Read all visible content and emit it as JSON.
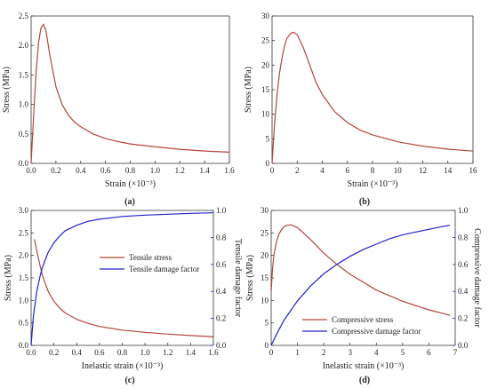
{
  "colors": {
    "stress": "#b5463a",
    "damage": "#2222cc",
    "axis": "#333333",
    "right_axis": "#2222cc"
  },
  "chart_data": [
    {
      "panel": "(a)",
      "type": "line",
      "xlabel": "Strain (×10⁻³)",
      "ylabel": "Stress (MPa)",
      "xlim": [
        0,
        1.6
      ],
      "ylim": [
        0,
        2.5
      ],
      "xticks": [
        "0.0",
        "0.2",
        "0.4",
        "0.6",
        "0.8",
        "1.0",
        "1.2",
        "1.4",
        "1.6"
      ],
      "yticks": [
        "0.0",
        "0.5",
        "1.0",
        "1.5",
        "2.0",
        "2.5"
      ],
      "series": [
        {
          "color": "stress",
          "x": [
            0,
            0.02,
            0.04,
            0.06,
            0.08,
            0.1,
            0.12,
            0.15,
            0.2,
            0.25,
            0.3,
            0.35,
            0.4,
            0.5,
            0.6,
            0.7,
            0.8,
            1.0,
            1.2,
            1.4,
            1.6
          ],
          "y": [
            0,
            0.8,
            1.55,
            2.05,
            2.3,
            2.36,
            2.25,
            1.85,
            1.3,
            1.0,
            0.82,
            0.7,
            0.62,
            0.5,
            0.42,
            0.37,
            0.33,
            0.28,
            0.24,
            0.21,
            0.19
          ]
        }
      ]
    },
    {
      "panel": "(b)",
      "type": "line",
      "xlabel": "Strain (×10⁻³)",
      "ylabel": "Stress (MPa)",
      "xlim": [
        0,
        16
      ],
      "ylim": [
        0,
        30
      ],
      "xticks": [
        "0",
        "2",
        "4",
        "6",
        "8",
        "10",
        "12",
        "14",
        "16"
      ],
      "yticks": [
        "0",
        "5",
        "10",
        "15",
        "20",
        "25",
        "30"
      ],
      "series": [
        {
          "color": "stress",
          "x": [
            0,
            0.2,
            0.4,
            0.6,
            0.8,
            1.0,
            1.2,
            1.5,
            1.7,
            2.0,
            2.5,
            3.0,
            3.5,
            4.0,
            5.0,
            6.0,
            7.0,
            8.0,
            10,
            12,
            14,
            16
          ],
          "y": [
            0,
            8.0,
            14.0,
            18.5,
            21.5,
            24.0,
            25.5,
            26.5,
            26.7,
            26.2,
            23.5,
            20.0,
            16.5,
            14.0,
            10.5,
            8.3,
            6.8,
            5.8,
            4.4,
            3.5,
            2.9,
            2.5
          ]
        }
      ]
    },
    {
      "panel": "(c)",
      "type": "line",
      "xlabel": "Inelastic strain (×10⁻³)",
      "ylabel": "Stress (MPa)",
      "y2label": "Tensile damage factor",
      "xlim": [
        0,
        1.6
      ],
      "ylim": [
        0,
        3.0
      ],
      "y2lim": [
        0,
        1.0
      ],
      "xticks": [
        "0.0",
        "0.2",
        "0.4",
        "0.6",
        "0.8",
        "1.0",
        "1.2",
        "1.4",
        "1.6"
      ],
      "yticks": [
        "0.0",
        "0.5",
        "1.0",
        "1.5",
        "2.0",
        "2.5",
        "3.0"
      ],
      "y2ticks": [
        "0.0",
        "0.2",
        "0.4",
        "0.6",
        "0.8",
        "1.0"
      ],
      "legend": "center-right",
      "series": [
        {
          "name": "Tensile stress",
          "axis": "left",
          "color": "stress",
          "x": [
            0.03,
            0.05,
            0.08,
            0.1,
            0.15,
            0.2,
            0.25,
            0.3,
            0.4,
            0.5,
            0.6,
            0.8,
            1.0,
            1.2,
            1.4,
            1.6
          ],
          "y": [
            2.36,
            2.1,
            1.75,
            1.55,
            1.2,
            0.98,
            0.83,
            0.72,
            0.58,
            0.49,
            0.42,
            0.34,
            0.29,
            0.25,
            0.22,
            0.19
          ]
        },
        {
          "name": "Tensile damage factor",
          "axis": "right",
          "color": "damage",
          "x": [
            0,
            0.02,
            0.05,
            0.08,
            0.1,
            0.15,
            0.2,
            0.25,
            0.3,
            0.4,
            0.5,
            0.6,
            0.8,
            1.0,
            1.2,
            1.4,
            1.6
          ],
          "y": [
            0,
            0.22,
            0.4,
            0.52,
            0.58,
            0.69,
            0.76,
            0.81,
            0.85,
            0.89,
            0.92,
            0.935,
            0.955,
            0.965,
            0.972,
            0.978,
            0.982
          ]
        }
      ]
    },
    {
      "panel": "(d)",
      "type": "line",
      "xlabel": "Inelastic strain (×10⁻³)",
      "ylabel": "Stress (MPa)",
      "y2label": "Compressive damage factor",
      "xlim": [
        0,
        7
      ],
      "ylim": [
        0,
        30
      ],
      "y2lim": [
        0,
        1.0
      ],
      "xticks": [
        "0",
        "1",
        "2",
        "3",
        "4",
        "5",
        "6",
        "7"
      ],
      "yticks": [
        "0",
        "5",
        "10",
        "15",
        "20",
        "25",
        "30"
      ],
      "y2ticks": [
        "0.0",
        "0.2",
        "0.4",
        "0.6",
        "0.8",
        "1.0"
      ],
      "legend": "bottom-center",
      "series": [
        {
          "name": "Compressive stress",
          "axis": "left",
          "color": "stress",
          "x": [
            0,
            0.05,
            0.1,
            0.2,
            0.3,
            0.4,
            0.5,
            0.6,
            0.75,
            1.0,
            1.5,
            2.0,
            2.5,
            3.0,
            4.0,
            5.0,
            6.0,
            6.8
          ],
          "y": [
            12.0,
            17.0,
            20.0,
            23.0,
            24.8,
            25.8,
            26.4,
            26.7,
            26.8,
            26.2,
            23.5,
            20.5,
            18.0,
            15.8,
            12.3,
            9.8,
            7.9,
            6.7
          ]
        },
        {
          "name": "Compressive damage factor",
          "axis": "right",
          "color": "damage",
          "x": [
            0,
            0.25,
            0.5,
            0.75,
            1.0,
            1.5,
            2.0,
            2.5,
            3.0,
            3.5,
            4.0,
            4.5,
            5.0,
            5.5,
            6.0,
            6.5,
            6.8
          ],
          "y": [
            0,
            0.1,
            0.19,
            0.26,
            0.33,
            0.44,
            0.53,
            0.6,
            0.66,
            0.71,
            0.75,
            0.79,
            0.82,
            0.84,
            0.86,
            0.88,
            0.89
          ]
        }
      ]
    }
  ]
}
